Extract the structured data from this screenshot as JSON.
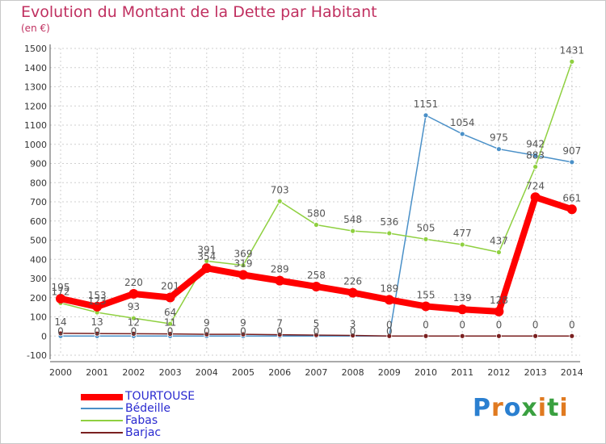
{
  "chart_data": {
    "type": "line",
    "title": "Evolution du Montant de la Dette par Habitant",
    "unit_label": "(en €)",
    "x": [
      "2000",
      "2001",
      "2002",
      "2003",
      "2004",
      "2005",
      "2006",
      "2007",
      "2008",
      "2009",
      "2010",
      "2011",
      "2012",
      "2013",
      "2014"
    ],
    "ylim": [
      -100,
      1500
    ],
    "yticks": [
      -100,
      0,
      100,
      200,
      300,
      400,
      500,
      600,
      700,
      800,
      900,
      1000,
      1100,
      1200,
      1300,
      1400,
      1500
    ],
    "grid": true,
    "legend_position": "bottom-left",
    "series": [
      {
        "name": "TOURTOUSE",
        "color": "#ff0000",
        "values": [
          195,
          153,
          220,
          201,
          354,
          319,
          289,
          258,
          226,
          189,
          155,
          139,
          128,
          724,
          661
        ]
      },
      {
        "name": "Bédeille",
        "color": "#4a90c8",
        "values": [
          0,
          0,
          0,
          0,
          0,
          0,
          0,
          0,
          0,
          0,
          1151,
          1054,
          975,
          942,
          907
        ]
      },
      {
        "name": "Fabas",
        "color": "#8fd040",
        "values": [
          172,
          123,
          93,
          64,
          391,
          369,
          703,
          580,
          548,
          536,
          505,
          477,
          437,
          883,
          1431
        ]
      },
      {
        "name": "Barjac",
        "color": "#7a2020",
        "values": [
          14,
          13,
          12,
          11,
          9,
          9,
          7,
          5,
          3,
          0,
          0,
          0,
          0,
          0,
          0
        ]
      }
    ],
    "point_labels": {
      "TOURTOUSE": [
        "195",
        "153",
        "220",
        "201",
        "354",
        "319",
        "289",
        "258",
        "226",
        "189",
        "155",
        "139",
        "128",
        "724",
        "661"
      ],
      "Bédeille": [
        "",
        "",
        "",
        "",
        "",
        "",
        "",
        "",
        "",
        "",
        "1151",
        "1054",
        "975",
        "942",
        "907"
      ],
      "Fabas": [
        "172",
        "123",
        "93",
        "64",
        "391",
        "369",
        "703",
        "580",
        "548",
        "536",
        "505",
        "477",
        "437",
        "883",
        ""
      ],
      "Barjac": [
        "14",
        "13",
        "12",
        "11",
        "9",
        "9",
        "7",
        "5",
        "3",
        "0",
        "0",
        "0",
        "0",
        "0",
        "0"
      ],
      "Fabas_top": [
        "",
        "",
        "",
        "",
        "",
        "",
        "",
        "",
        "",
        "",
        "",
        "",
        "",
        "",
        "1431"
      ],
      "Bedeille_low": [
        "0",
        "0",
        "0",
        "0",
        "0",
        "0",
        "0",
        "0",
        "0",
        "0",
        "",
        "",
        "",
        "",
        ""
      ]
    }
  },
  "legend": {
    "items": [
      {
        "label": "TOURTOUSE",
        "color": "#ff0000"
      },
      {
        "label": "Bédeille",
        "color": "#4a90c8"
      },
      {
        "label": "Fabas",
        "color": "#8fd040"
      },
      {
        "label": "Barjac",
        "color": "#7a2020"
      }
    ]
  },
  "logo": {
    "text": "Proxiti"
  }
}
